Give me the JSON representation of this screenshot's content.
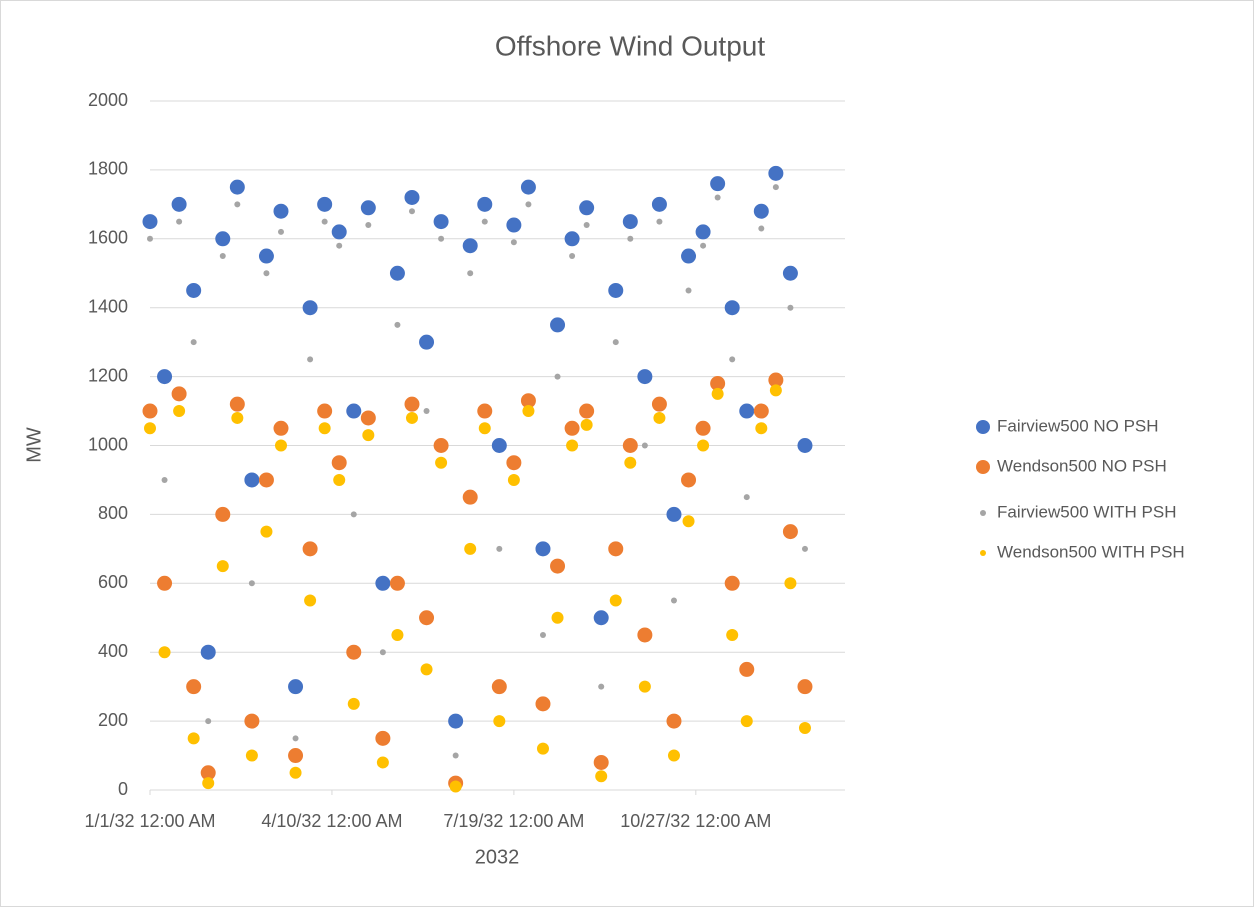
{
  "chart_data": {
    "type": "scatter",
    "title": "Offshore Wind Output",
    "x_label": "2032",
    "y_label": "MW",
    "x": [
      0,
      8,
      16,
      24,
      32,
      40,
      48,
      56,
      64,
      72,
      80,
      88,
      96,
      104,
      112,
      120,
      128,
      136,
      144,
      152,
      160,
      168,
      176,
      184,
      192,
      200,
      208,
      216,
      224,
      232,
      240,
      248,
      256,
      264,
      272,
      280,
      288,
      296,
      304,
      312,
      320,
      328,
      336,
      344,
      352,
      360
    ],
    "series": [
      {
        "name": "Fairview500 NO PSH",
        "color": "#4472c4",
        "values": [
          1650,
          1200,
          1700,
          1450,
          400,
          1600,
          1750,
          900,
          1550,
          1680,
          300,
          1400,
          1700,
          1620,
          1100,
          1690,
          600,
          1500,
          1720,
          1300,
          1650,
          200,
          1580,
          1700,
          1000,
          1640,
          1750,
          700,
          1350,
          1600,
          1690,
          500,
          1450,
          1650,
          1200,
          1700,
          800,
          1550,
          1620,
          1760,
          1400,
          1100,
          1680,
          1790,
          1500,
          1000
        ]
      },
      {
        "name": "Wendson500 NO PSH",
        "color": "#ed7d31",
        "values": [
          1100,
          600,
          1150,
          300,
          50,
          800,
          1120,
          200,
          900,
          1050,
          100,
          700,
          1100,
          950,
          400,
          1080,
          150,
          600,
          1120,
          500,
          1000,
          20,
          850,
          1100,
          300,
          950,
          1130,
          250,
          650,
          1050,
          1100,
          80,
          700,
          1000,
          450,
          1120,
          200,
          900,
          1050,
          1180,
          600,
          350,
          1100,
          1190,
          750,
          300
        ]
      },
      {
        "name": "Fairview500 WITH PSH",
        "color": "#a5a5a5",
        "values": [
          1600,
          900,
          1650,
          1300,
          200,
          1550,
          1700,
          600,
          1500,
          1620,
          150,
          1250,
          1650,
          1580,
          800,
          1640,
          400,
          1350,
          1680,
          1100,
          1600,
          100,
          1500,
          1650,
          700,
          1590,
          1700,
          450,
          1200,
          1550,
          1640,
          300,
          1300,
          1600,
          1000,
          1650,
          550,
          1450,
          1580,
          1720,
          1250,
          850,
          1630,
          1750,
          1400,
          700
        ]
      },
      {
        "name": "Wendson500 WITH PSH",
        "color": "#ffc000",
        "values": [
          1050,
          400,
          1100,
          150,
          20,
          650,
          1080,
          100,
          750,
          1000,
          50,
          550,
          1050,
          900,
          250,
          1030,
          80,
          450,
          1080,
          350,
          950,
          10,
          700,
          1050,
          200,
          900,
          1100,
          120,
          500,
          1000,
          1060,
          40,
          550,
          950,
          300,
          1080,
          100,
          780,
          1000,
          1150,
          450,
          200,
          1050,
          1160,
          600,
          180
        ]
      }
    ],
    "xlim": [
      0,
      382
    ],
    "xticks": [
      {
        "value": 0,
        "label": "1/1/32 12:00 AM"
      },
      {
        "value": 100,
        "label": "4/10/32 12:00 AM"
      },
      {
        "value": 200,
        "label": "7/19/32 12:00 AM"
      },
      {
        "value": 300,
        "label": "10/27/32 12:00 AM"
      }
    ],
    "ylim": [
      0,
      2000
    ],
    "yticks": [
      0,
      200,
      400,
      600,
      800,
      1000,
      1200,
      1400,
      1600,
      1800,
      2000
    ],
    "grid": true,
    "legend": "right"
  }
}
